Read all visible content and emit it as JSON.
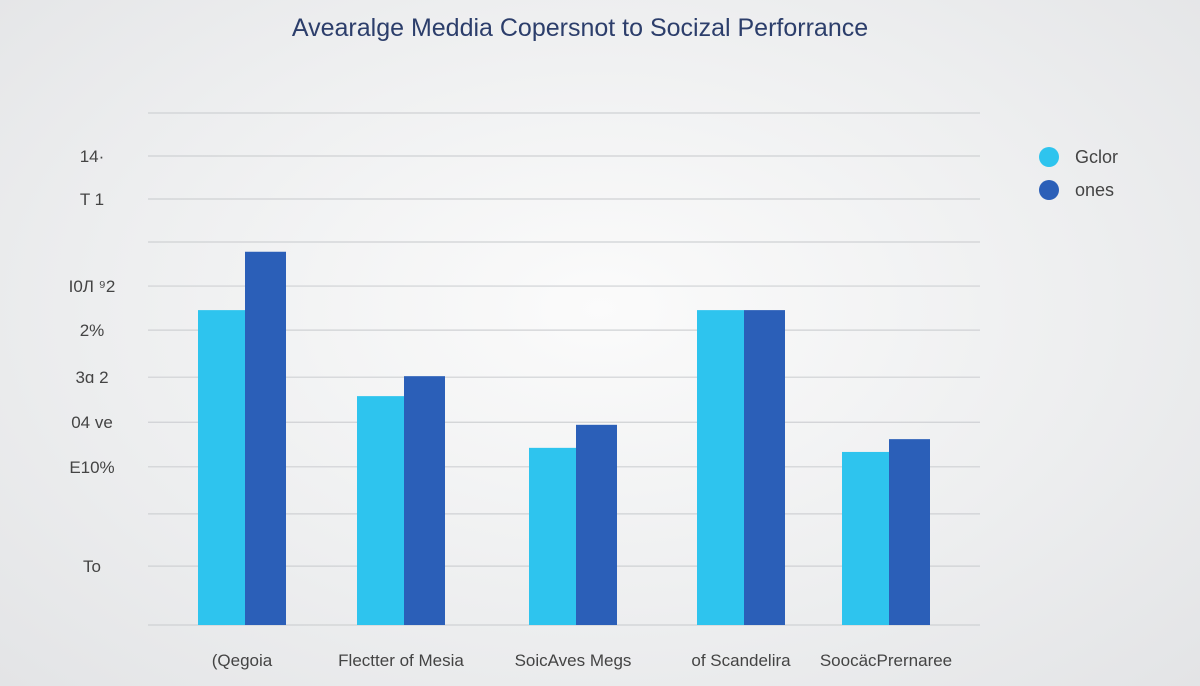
{
  "chart_data": {
    "type": "bar",
    "title": "Avearalge Meddia Copersnot to Socizal Perforrance",
    "categories": [
      "(Qegoia",
      "Flectter of Mesia",
      "SoicAves Megs",
      "of Scandelira",
      "SoocäcPrernaree"
    ],
    "series": [
      {
        "name": "Gclor",
        "color": "#2ec4ee",
        "values": [
          61.5,
          44.7,
          34.6,
          61.5,
          33.8
        ]
      },
      {
        "name": "ones",
        "color": "#2b5fb8",
        "values": [
          72.9,
          48.6,
          39.1,
          61.5,
          36.3
        ]
      }
    ],
    "ylim": [
      0,
      100
    ],
    "gridlines": [
      0,
      11.5,
      21.7,
      30.9,
      39.6,
      48.4,
      57.6,
      66.2,
      74.8,
      83.2,
      91.6,
      100
    ],
    "ytick_labels": [
      {
        "value": 91.6,
        "label": "14·"
      },
      {
        "value": 83.2,
        "label": "T 1"
      },
      {
        "value": 66.2,
        "label": "I0Л ⁹2"
      },
      {
        "value": 57.6,
        "label": "2%"
      },
      {
        "value": 48.4,
        "label": "3ɑ 2"
      },
      {
        "value": 39.6,
        "label": "04 ve"
      },
      {
        "value": 30.9,
        "label": "E10%"
      },
      {
        "value": 11.5,
        "label": "To"
      }
    ],
    "grid": true,
    "legend_position": "top-right",
    "xlabel": "",
    "ylabel": ""
  }
}
